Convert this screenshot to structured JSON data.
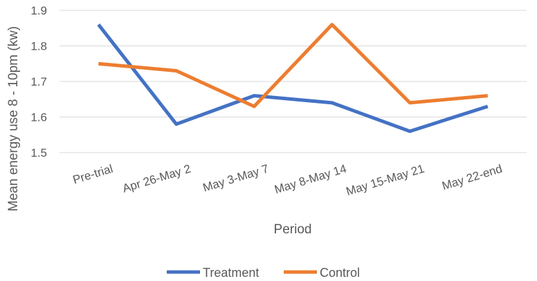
{
  "chart_data": {
    "type": "line",
    "title": "",
    "xlabel": "Period",
    "ylabel": "Mean energy use 8 - 10pm (kw)",
    "categories": [
      "Pre-trial",
      "Apr 26-May 2",
      "May 3-May 7",
      "May 8-May 14",
      "May 15-May 21",
      "May 22-end"
    ],
    "ylim": [
      1.5,
      1.9
    ],
    "yticks": [
      "1.5",
      "1.6",
      "1.7",
      "1.8",
      "1.9"
    ],
    "grid": true,
    "legend_position": "bottom",
    "series": [
      {
        "name": "Treatment",
        "color": "#4472C4",
        "values": [
          1.86,
          1.58,
          1.66,
          1.64,
          1.56,
          1.63
        ]
      },
      {
        "name": "Control",
        "color": "#ED7D31",
        "values": [
          1.75,
          1.73,
          1.63,
          1.86,
          1.64,
          1.66
        ]
      }
    ]
  }
}
